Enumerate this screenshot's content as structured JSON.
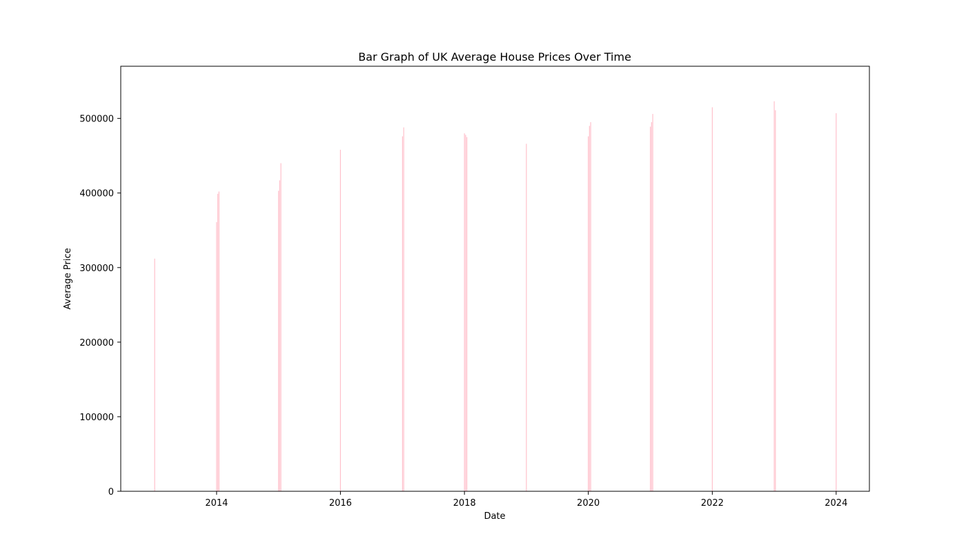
{
  "chart_data": {
    "type": "bar",
    "title": "Bar Graph of UK Average House Prices Over Time",
    "xlabel": "Date",
    "ylabel": "Average Price",
    "x_axis_type": "date",
    "xlim": [
      "2012-06-15",
      "2024-07-15"
    ],
    "ylim": [
      0,
      570000
    ],
    "x_ticks": [
      "2014",
      "2016",
      "2018",
      "2020",
      "2022",
      "2024"
    ],
    "x_tick_dates": [
      "2014-01-01",
      "2016-01-01",
      "2018-01-01",
      "2020-01-01",
      "2022-01-01",
      "2024-01-01"
    ],
    "y_ticks": [
      0,
      100000,
      200000,
      300000,
      400000,
      500000
    ],
    "y_tick_labels": [
      "0",
      "100000",
      "200000",
      "300000",
      "400000",
      "500000"
    ],
    "grid": false,
    "bar_color": "#ffc0cb",
    "x": [
      "2013-01-01",
      "2014-01-01",
      "2014-01-08",
      "2014-01-15",
      "2015-01-01",
      "2015-01-08",
      "2015-01-15",
      "2016-01-01",
      "2017-01-01",
      "2017-01-08",
      "2018-01-01",
      "2018-01-08",
      "2018-01-15",
      "2019-01-01",
      "2020-01-01",
      "2020-01-08",
      "2020-01-15",
      "2021-01-01",
      "2021-01-08",
      "2021-01-15",
      "2022-01-01",
      "2023-01-01",
      "2023-01-08",
      "2024-01-01"
    ],
    "values": [
      312000,
      361000,
      399000,
      402000,
      403000,
      417000,
      440000,
      458000,
      476000,
      488000,
      480000,
      478000,
      475000,
      466000,
      476000,
      490000,
      495000,
      489000,
      495000,
      506000,
      515000,
      523000,
      511000,
      507000
    ]
  }
}
